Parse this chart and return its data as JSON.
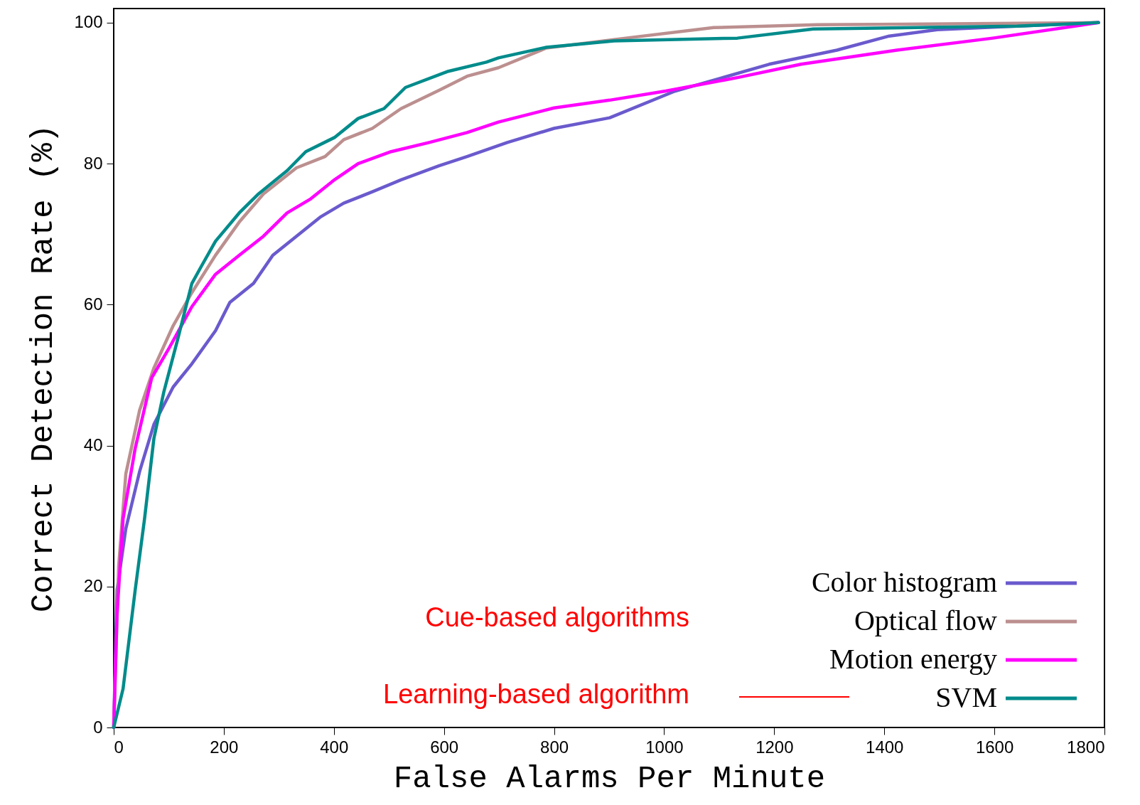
{
  "chart_data": {
    "type": "line",
    "xlabel": "False Alarms Per Minute",
    "ylabel": "Correct Detection Rate (%)",
    "xlim": [
      0,
      1800
    ],
    "ylim": [
      0,
      102
    ],
    "xticks": [
      0,
      200,
      400,
      600,
      800,
      1000,
      1200,
      1400,
      1600,
      1800
    ],
    "yticks": [
      0,
      20,
      40,
      60,
      80,
      100
    ],
    "grid": false,
    "legend": "bottom right",
    "line_style": "solid",
    "marker": "none",
    "annotations": [
      "Cue-based algorithms",
      "Learning-based algorithm"
    ],
    "series": [
      {
        "name": "Color histogram",
        "color": "#6a5acd",
        "x": [
          0,
          6,
          22,
          47,
          73,
          108,
          142,
          185,
          211,
          254,
          289,
          332,
          375,
          418,
          470,
          522,
          591,
          642,
          715,
          800,
          901,
          1017,
          1191,
          1314,
          1409,
          1496,
          1641,
          1789
        ],
        "values": [
          0,
          19.5,
          28.2,
          36.3,
          43,
          48.3,
          51.6,
          56.3,
          60.3,
          63,
          67,
          69.7,
          72.4,
          74.4,
          76,
          77.7,
          79.7,
          81,
          83,
          85,
          86.5,
          90.2,
          94.1,
          96.1,
          98.1,
          99,
          99.5,
          100
        ]
      },
      {
        "name": "Optical flow",
        "color": "#bc8f8f",
        "x": [
          0,
          9,
          22,
          47,
          73,
          108,
          142,
          185,
          228,
          272,
          332,
          384,
          418,
          470,
          522,
          591,
          642,
          699,
          786,
          909,
          1090,
          1278,
          1789
        ],
        "values": [
          0,
          22.9,
          36,
          45,
          51,
          57,
          61.7,
          67,
          71.7,
          75.7,
          79.4,
          81,
          83.4,
          85,
          87.8,
          90.4,
          92.4,
          93.6,
          96.4,
          97.6,
          99.3,
          99.7,
          100
        ]
      },
      {
        "name": "Motion energy",
        "color": "#ff00ff",
        "x": [
          0,
          6,
          17,
          39,
          69,
          99,
          142,
          185,
          228,
          272,
          315,
          358,
          401,
          444,
          504,
          573,
          642,
          699,
          800,
          901,
          1003,
          1133,
          1249,
          1423,
          1597,
          1789
        ],
        "values": [
          0,
          16,
          29.6,
          39.6,
          49.6,
          53.6,
          59.7,
          64.3,
          67,
          69.7,
          73,
          75,
          77.7,
          80,
          81.7,
          83,
          84.4,
          85.9,
          87.9,
          89,
          90.3,
          92.2,
          94.1,
          96.1,
          97.8,
          100
        ]
      },
      {
        "name": "SVM",
        "color": "#008b8b",
        "x": [
          0,
          17,
          39,
          56,
          73,
          91,
          116,
          142,
          159,
          185,
          228,
          263,
          315,
          349,
          401,
          444,
          491,
          530,
          608,
          677,
          699,
          786,
          909,
          1133,
          1271,
          1641,
          1789
        ],
        "values": [
          0,
          5.5,
          19.5,
          29.6,
          41,
          47.6,
          55,
          63,
          65.4,
          69,
          73,
          75.7,
          79,
          81.7,
          83.7,
          86.4,
          87.8,
          90.8,
          93.1,
          94.4,
          95,
          96.5,
          97.4,
          97.8,
          99.1,
          99.5,
          100
        ]
      }
    ]
  }
}
